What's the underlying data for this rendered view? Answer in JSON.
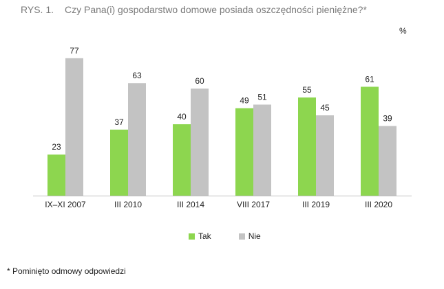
{
  "figure": {
    "label": "RYS. 1.",
    "title": "Czy Pana(i) gospodarstwo domowe posiada oszczędności pieniężne?*",
    "unit": "%",
    "footnote": "* Pominięto odmowy odpowiedzi"
  },
  "colors": {
    "tak": "#8dd64f",
    "nie": "#c3c3c3",
    "title": "#7a7a7a",
    "text": "#222222"
  },
  "chart_data": {
    "type": "bar",
    "title": "Czy Pana(i) gospodarstwo domowe posiada oszczędności pieniężne?*",
    "xlabel": "",
    "ylabel": "",
    "unit": "%",
    "categories": [
      "IX–XI 2007",
      "III 2010",
      "III 2014",
      "VIII 2017",
      "III 2019",
      "III 2020"
    ],
    "series": [
      {
        "name": "Tak",
        "values": [
          23,
          37,
          40,
          49,
          55,
          61
        ]
      },
      {
        "name": "Nie",
        "values": [
          77,
          63,
          60,
          51,
          45,
          39
        ]
      }
    ],
    "ylim": [
      0,
      100
    ],
    "grid": false,
    "legend_position": "bottom",
    "data_labels": true
  }
}
